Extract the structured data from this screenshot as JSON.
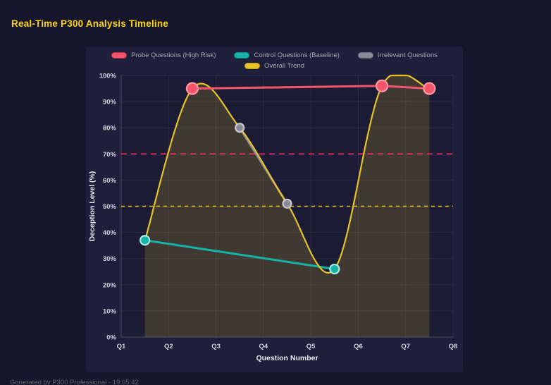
{
  "page": {
    "title": "Real-Time P300 Analysis Timeline",
    "footer": "Generated by P300 Professional - 19:05:42"
  },
  "legend": {
    "items": [
      {
        "id": "probe",
        "label": "Probe Questions (High Risk)",
        "color": "#f4556a",
        "border": "#c13a4e"
      },
      {
        "id": "control",
        "label": "Control Questions (Baseline)",
        "color": "#16b3a8",
        "border": "#0e8a82"
      },
      {
        "id": "irrelevant",
        "label": "Irrelevant Questions",
        "color": "#8b8b98",
        "border": "#6d6d7a"
      },
      {
        "id": "trend",
        "label": "Overall Trend",
        "color": "#e8c229",
        "border": "#b79a1d"
      }
    ]
  },
  "chart_data": {
    "type": "line",
    "title": "Real-Time P300 Analysis Timeline",
    "xlabel": "Question Number",
    "ylabel": "Deception Level (%)",
    "x_tick_labels": [
      "Q1",
      "Q2",
      "Q3",
      "Q4",
      "Q5",
      "Q6",
      "Q7",
      "Q8"
    ],
    "x_tick_values": [
      1,
      2,
      3,
      4,
      5,
      6,
      7,
      8
    ],
    "x_range": [
      1,
      8
    ],
    "y_tick_labels": [
      "0%",
      "10%",
      "20%",
      "30%",
      "40%",
      "50%",
      "60%",
      "70%",
      "80%",
      "90%",
      "100%"
    ],
    "y_tick_values": [
      0,
      10,
      20,
      30,
      40,
      50,
      60,
      70,
      80,
      90,
      100
    ],
    "y_range": [
      0,
      100
    ],
    "grid": true,
    "legend_position": "top",
    "series": [
      {
        "id": "probe",
        "name": "Probe Questions (High Risk)",
        "color": "#f4556a",
        "marker_stroke": "#ff96a3",
        "points": [
          [
            2.5,
            95
          ],
          [
            6.5,
            96
          ],
          [
            7.5,
            95
          ]
        ]
      },
      {
        "id": "control",
        "name": "Control Questions (Baseline)",
        "color": "#16b3a8",
        "marker_stroke": "#a8ece5",
        "points": [
          [
            1.5,
            37
          ],
          [
            5.5,
            26
          ]
        ]
      },
      {
        "id": "irrelevant",
        "name": "Irrelevant Questions",
        "color": "#8b8b98",
        "marker_stroke": "#c9c9d2",
        "points": [
          [
            3.5,
            80
          ],
          [
            4.5,
            51
          ]
        ]
      },
      {
        "id": "trend",
        "name": "Overall Trend",
        "color": "#e8c229",
        "smooth": true,
        "fill": true,
        "fill_opacity": 0.18,
        "points": [
          [
            1.5,
            37
          ],
          [
            2.5,
            95
          ],
          [
            3.5,
            80
          ],
          [
            4.5,
            51
          ],
          [
            5.5,
            26
          ],
          [
            6.5,
            96
          ],
          [
            7.5,
            95
          ]
        ]
      }
    ],
    "thresholds": [
      {
        "label": "high-risk-threshold",
        "y": 70,
        "color": "#ff2e63",
        "dash": "8 6"
      },
      {
        "label": "baseline-threshold",
        "y": 50,
        "color": "#e8c229",
        "dash": "5 5"
      }
    ]
  }
}
